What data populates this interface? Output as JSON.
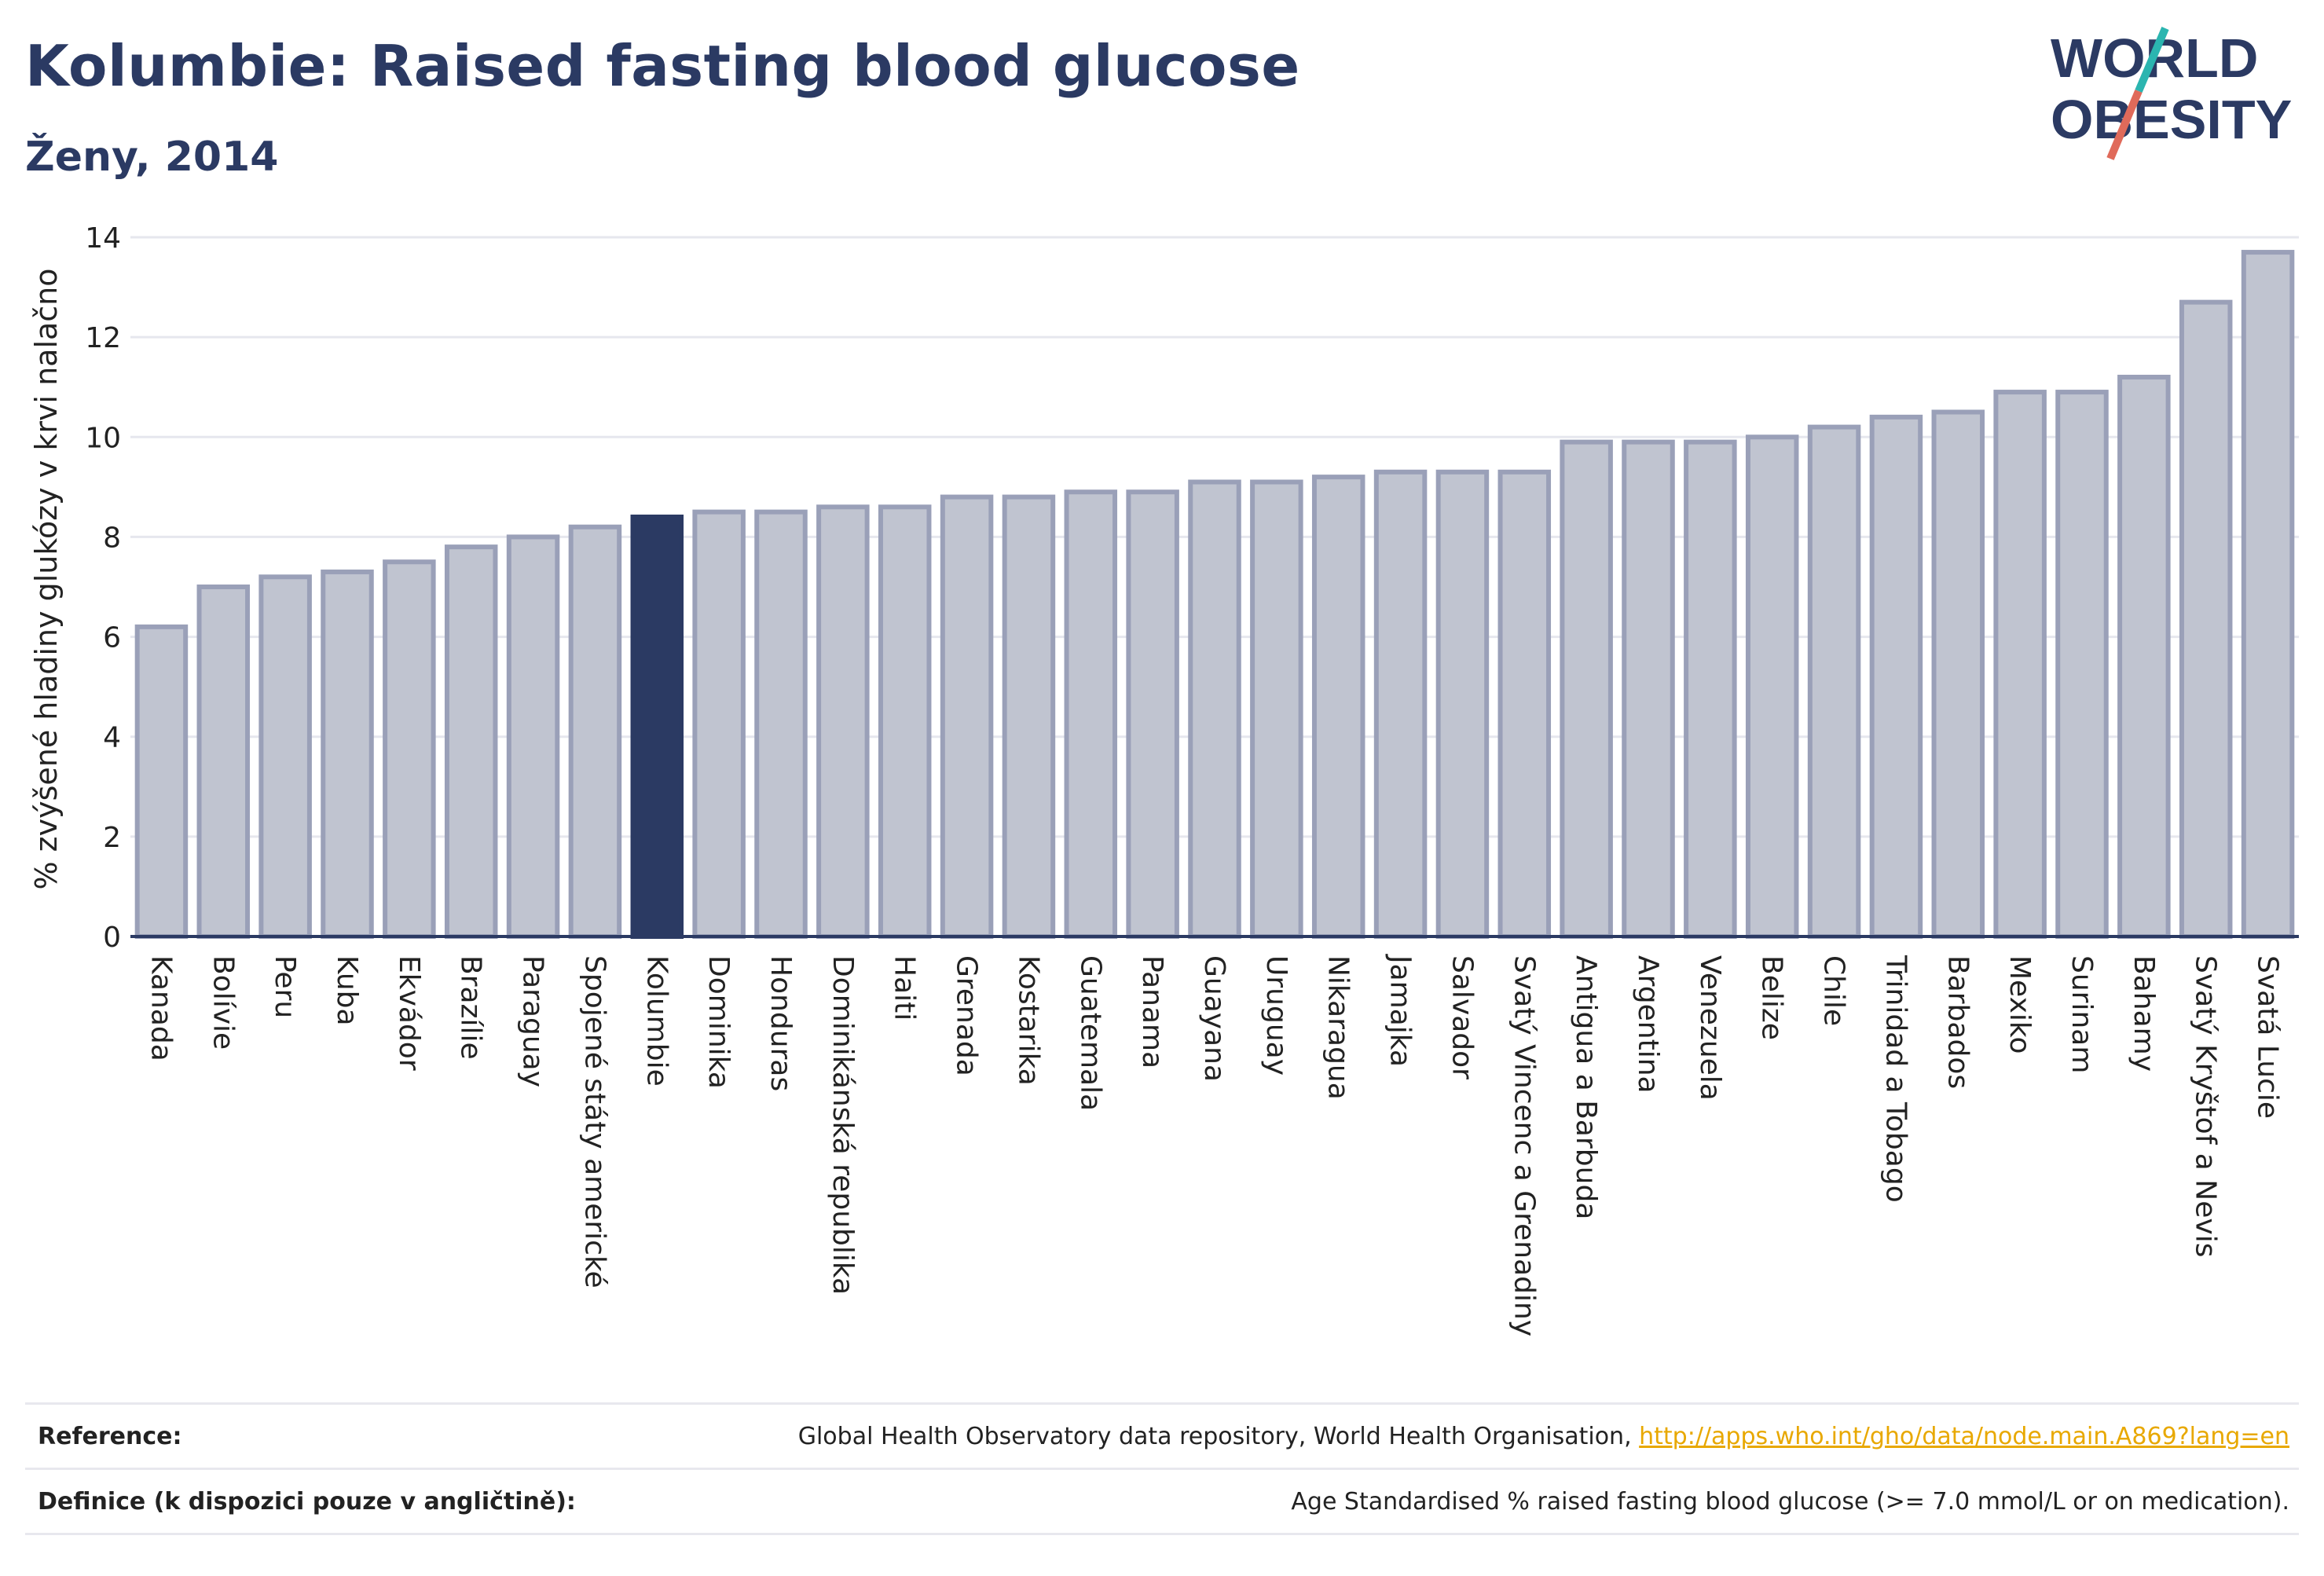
{
  "header": {
    "title": "Kolumbie: Raised fasting blood glucose",
    "subtitle": "Ženy, 2014"
  },
  "logo": {
    "line1": "WORLD",
    "line2": "OBESITY",
    "colors": {
      "text": "#2b3a63",
      "slash_teal": "#2bb5b0",
      "slash_red": "#e06a5a"
    }
  },
  "chart_data": {
    "type": "bar",
    "ylabel": "% zvýšené hladiny glukózy v krvi nalačno",
    "xlabel": "",
    "ylim": [
      0,
      14
    ],
    "yticks": [
      0,
      2,
      4,
      6,
      8,
      10,
      12,
      14
    ],
    "grid": true,
    "highlight": "Kolumbie",
    "colors": {
      "bar": "#c0c4d0",
      "bar_border": "#9aa0b8",
      "highlight": "#2b3a63"
    },
    "categories": [
      "Kanada",
      "Bolívie",
      "Peru",
      "Kuba",
      "Ekvádor",
      "Brazílie",
      "Paraguay",
      "Spojené státy americké",
      "Kolumbie",
      "Dominika",
      "Honduras",
      "Dominikánská republika",
      "Haiti",
      "Grenada",
      "Kostarika",
      "Guatemala",
      "Panama",
      "Guayana",
      "Uruguay",
      "Nikaragua",
      "Jamajka",
      "Salvador",
      "Svatý Vincenc a Grenadiny",
      "Antigua a Barbuda",
      "Argentina",
      "Venezuela",
      "Belize",
      "Chile",
      "Trinidad a Tobago",
      "Barbados",
      "Mexiko",
      "Surinam",
      "Bahamy",
      "Svatý Kryštof a Nevis",
      "Svatá Lucie"
    ],
    "values": [
      6.2,
      7.0,
      7.2,
      7.3,
      7.5,
      7.8,
      8.0,
      8.2,
      8.4,
      8.5,
      8.5,
      8.6,
      8.6,
      8.8,
      8.8,
      8.9,
      8.9,
      9.1,
      9.1,
      9.2,
      9.3,
      9.3,
      9.3,
      9.9,
      9.9,
      9.9,
      10.0,
      10.2,
      10.4,
      10.5,
      10.9,
      10.9,
      11.2,
      12.7,
      13.7
    ]
  },
  "footer": {
    "reference_label": "Reference:",
    "reference_text": "Global Health Observatory data repository, World Health Organisation, ",
    "reference_link": "http://apps.who.int/gho/data/node.main.A869?lang=en",
    "definition_label": "Definice (k dispozici pouze v angličtině):",
    "definition_text": "Age Standardised % raised fasting blood glucose (>= 7.0 mmol/L or on medication)."
  }
}
